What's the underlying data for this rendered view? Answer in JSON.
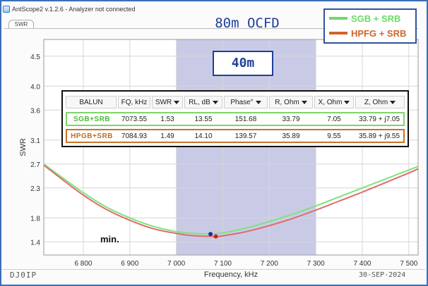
{
  "window": {
    "title": "AntScope2 v.1.2.6 - Analyzer not connected",
    "tab": "SWR"
  },
  "annotations": {
    "main_title": "80m OCFD",
    "band_label": "40m",
    "min_label": "min.",
    "callsign": "DJ0IP",
    "date": "30-SEP-2024"
  },
  "legend": [
    {
      "label": "SGB + SRB",
      "color": "#6fd86a"
    },
    {
      "label": "HPFG + SRB",
      "color": "#d0642a"
    }
  ],
  "marker_table": {
    "columns": [
      {
        "label": "BALUN",
        "dropdown": false
      },
      {
        "label": "FQ, kHz",
        "dropdown": false
      },
      {
        "label": "SWR",
        "dropdown": true
      },
      {
        "label": "RL, dB",
        "dropdown": true
      },
      {
        "label": "Phase°",
        "dropdown": true
      },
      {
        "label": "R, Ohm",
        "dropdown": true
      },
      {
        "label": "X, Ohm",
        "dropdown": true
      },
      {
        "label": "Z, Ohm",
        "dropdown": true
      }
    ],
    "rows": [
      {
        "balun": "SGB+SRB",
        "fq": "7073.55",
        "swr": "1.53",
        "rl": "13.55",
        "phase": "151.68",
        "r": "33.79",
        "x": "7.05",
        "z": "33.79 + j7.05",
        "color": "#7fd36a"
      },
      {
        "balun": "HPGB+SRB",
        "fq": "7084.93",
        "swr": "1.49",
        "rl": "14.10",
        "phase": "139.57",
        "r": "35.89",
        "x": "9.55",
        "z": "35.89 + j9.55",
        "color": "#c77428"
      }
    ]
  },
  "chart_data": {
    "type": "line",
    "xlabel": "Frequency, kHz",
    "ylabel": "SWR",
    "xlim": [
      6715,
      7520
    ],
    "ylim": [
      1.18,
      4.78
    ],
    "x_ticks": [
      6800,
      6900,
      7000,
      7100,
      7200,
      7300,
      7400,
      7500
    ],
    "x_tick_labels": [
      "6 800",
      "6 900",
      "7 000",
      "7 100",
      "7 200",
      "7 300",
      "7 400",
      "7 500"
    ],
    "y_ticks": [
      1.4,
      1.8,
      2.3,
      2.7,
      3.1,
      3.6,
      4.0,
      4.5
    ],
    "y_tick_labels": [
      "1.4",
      "1.8",
      "2.3",
      "2.7",
      "3.1",
      "3.6",
      "4.0",
      "4.5"
    ],
    "grid": true,
    "band_highlight": {
      "from": 7000,
      "to": 7300,
      "color": "#c9cbe6"
    },
    "series": [
      {
        "name": "SGB + SRB",
        "color": "#7ee37a",
        "x": [
          6715,
          6750,
          6800,
          6850,
          6900,
          6950,
          7000,
          7040,
          7073.55,
          7100,
          7150,
          7200,
          7250,
          7300,
          7350,
          7400,
          7450,
          7500,
          7520
        ],
        "y": [
          2.7,
          2.5,
          2.22,
          1.98,
          1.8,
          1.66,
          1.57,
          1.54,
          1.53,
          1.55,
          1.63,
          1.74,
          1.86,
          2.0,
          2.15,
          2.3,
          2.45,
          2.6,
          2.66
        ]
      },
      {
        "name": "HPFG + SRB",
        "color": "#e06a6a",
        "x": [
          6715,
          6750,
          6800,
          6850,
          6900,
          6950,
          7000,
          7040,
          7084.93,
          7100,
          7150,
          7200,
          7250,
          7300,
          7350,
          7400,
          7450,
          7500,
          7520
        ],
        "y": [
          2.68,
          2.47,
          2.18,
          1.94,
          1.76,
          1.62,
          1.54,
          1.5,
          1.49,
          1.5,
          1.57,
          1.67,
          1.79,
          1.93,
          2.08,
          2.23,
          2.39,
          2.55,
          2.62
        ]
      }
    ],
    "markers": [
      {
        "x": 7073.55,
        "y": 1.53,
        "color": "#1d2f8f"
      },
      {
        "x": 7084.93,
        "y": 1.49,
        "color": "#d11c1c"
      }
    ]
  }
}
